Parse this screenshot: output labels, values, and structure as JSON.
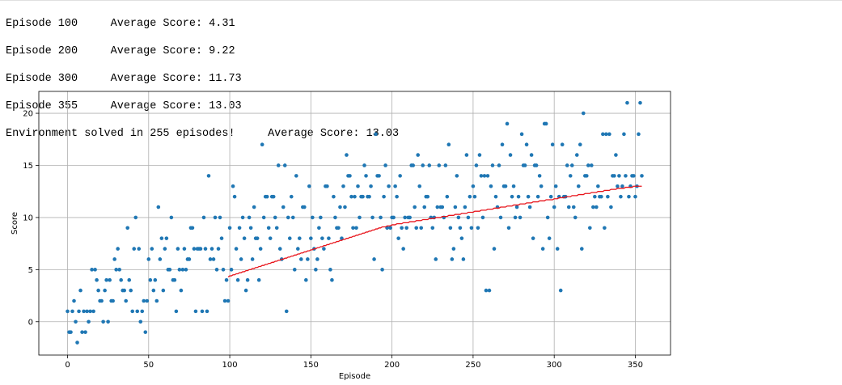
{
  "output": {
    "lines": [
      "Episode 100\tAverage Score: 4.31",
      "Episode 200\tAverage Score: 9.22",
      "Episode 300\tAverage Score: 11.73",
      "Episode 355\tAverage Score: 13.03",
      "Environment solved in 255 episodes!\tAverage Score: 13.03"
    ]
  },
  "chart_data": {
    "type": "scatter",
    "xlabel": "Episode",
    "ylabel": "Score",
    "xlim": [
      -17.7,
      371.7
    ],
    "ylim": [
      -3.2,
      22.1
    ],
    "xticks": [
      0,
      50,
      100,
      150,
      200,
      250,
      300,
      350
    ],
    "yticks": [
      0,
      5,
      10,
      15,
      20
    ],
    "grid": true,
    "series": [
      {
        "name": "Score",
        "kind": "scatter",
        "color": "#1f77b4",
        "x": [
          0,
          1,
          2,
          3,
          4,
          5,
          6,
          7,
          8,
          9,
          10,
          11,
          12,
          13,
          14,
          15,
          16,
          17,
          18,
          19,
          20,
          21,
          22,
          23,
          24,
          25,
          26,
          27,
          28,
          29,
          30,
          31,
          32,
          33,
          34,
          35,
          36,
          37,
          38,
          39,
          40,
          41,
          42,
          43,
          44,
          45,
          46,
          47,
          48,
          49,
          50,
          51,
          52,
          53,
          54,
          55,
          56,
          57,
          58,
          59,
          60,
          61,
          62,
          63,
          64,
          65,
          66,
          67,
          68,
          69,
          70,
          71,
          72,
          73,
          74,
          75,
          76,
          77,
          78,
          79,
          80,
          81,
          82,
          83,
          84,
          85,
          86,
          87,
          88,
          89,
          90,
          91,
          92,
          93,
          94,
          95,
          96,
          97,
          98,
          99,
          100,
          101,
          102,
          103,
          104,
          105,
          106,
          107,
          108,
          109,
          110,
          111,
          112,
          113,
          114,
          115,
          116,
          117,
          118,
          119,
          120,
          121,
          122,
          123,
          124,
          125,
          126,
          127,
          128,
          129,
          130,
          131,
          132,
          133,
          134,
          135,
          136,
          137,
          138,
          139,
          140,
          141,
          142,
          143,
          144,
          145,
          146,
          147,
          148,
          149,
          150,
          151,
          152,
          153,
          154,
          155,
          156,
          157,
          158,
          159,
          160,
          161,
          162,
          163,
          164,
          165,
          166,
          167,
          168,
          169,
          170,
          171,
          172,
          173,
          174,
          175,
          176,
          177,
          178,
          179,
          180,
          181,
          182,
          183,
          184,
          185,
          186,
          187,
          188,
          189,
          190,
          191,
          192,
          193,
          194,
          195,
          196,
          197,
          198,
          199,
          200,
          201,
          202,
          203,
          204,
          205,
          206,
          207,
          208,
          209,
          210,
          211,
          212,
          213,
          214,
          215,
          216,
          217,
          218,
          219,
          220,
          221,
          222,
          223,
          224,
          225,
          226,
          227,
          228,
          229,
          230,
          231,
          232,
          233,
          234,
          235,
          236,
          237,
          238,
          239,
          240,
          241,
          242,
          243,
          244,
          245,
          246,
          247,
          248,
          249,
          250,
          251,
          252,
          253,
          254,
          255,
          256,
          257,
          258,
          259,
          260,
          261,
          262,
          263,
          264,
          265,
          266,
          267,
          268,
          269,
          270,
          271,
          272,
          273,
          274,
          275,
          276,
          277,
          278,
          279,
          280,
          281,
          282,
          283,
          284,
          285,
          286,
          287,
          288,
          289,
          290,
          291,
          292,
          293,
          294,
          295,
          296,
          297,
          298,
          299,
          300,
          301,
          302,
          303,
          304,
          305,
          306,
          307,
          308,
          309,
          310,
          311,
          312,
          313,
          314,
          315,
          316,
          317,
          318,
          319,
          320,
          321,
          322,
          323,
          324,
          325,
          326,
          327,
          328,
          329,
          330,
          331,
          332,
          333,
          334,
          335,
          336,
          337,
          338,
          339,
          340,
          341,
          342,
          343,
          344,
          345,
          346,
          347,
          348,
          349,
          350,
          351,
          352,
          353,
          354
        ],
        "values": [
          1,
          -1,
          -1,
          1,
          2,
          0,
          -2,
          1,
          3,
          -1,
          1,
          -1,
          1,
          0,
          1,
          5,
          1,
          5,
          4,
          3,
          2,
          2,
          0,
          3,
          4,
          0,
          4,
          2,
          2,
          6,
          5,
          7,
          5,
          4,
          3,
          3,
          2,
          9,
          4,
          3,
          1,
          7,
          10,
          1,
          7,
          0,
          1,
          2,
          -1,
          2,
          6,
          4,
          7,
          3,
          4,
          2,
          11,
          6,
          8,
          3,
          7,
          8,
          5,
          5,
          10,
          4,
          4,
          1,
          7,
          5,
          3,
          5,
          7,
          5,
          6,
          6,
          9,
          9,
          7,
          1,
          7,
          7,
          7,
          1,
          10,
          7,
          1,
          14,
          6,
          7,
          6,
          10,
          5,
          7,
          10,
          8,
          5,
          2,
          4,
          2,
          9,
          5,
          13,
          12,
          7,
          4,
          9,
          6,
          10,
          8,
          3,
          4,
          10,
          9,
          6,
          11,
          8,
          8,
          4,
          7,
          17,
          10,
          12,
          12,
          9,
          8,
          12,
          12,
          10,
          9,
          15,
          7,
          6,
          11,
          15,
          1,
          10,
          8,
          12,
          10,
          5,
          14,
          7,
          8,
          6,
          11,
          11,
          4,
          6,
          13,
          8,
          10,
          7,
          5,
          6,
          9,
          10,
          8,
          7,
          13,
          13,
          8,
          5,
          4,
          12,
          10,
          9,
          9,
          11,
          8,
          13,
          11,
          16,
          14,
          14,
          12,
          9,
          12,
          9,
          13,
          10,
          12,
          12,
          15,
          14,
          12,
          12,
          13,
          10,
          6,
          18,
          14,
          14,
          10,
          5,
          12,
          15,
          9,
          13,
          9,
          10,
          10,
          13,
          12,
          8,
          14,
          9,
          7,
          10,
          9,
          10,
          10,
          15,
          15,
          11,
          9,
          16,
          13,
          9,
          15,
          11,
          12,
          12,
          15,
          10,
          9,
          10,
          6,
          11,
          15,
          11,
          11,
          10,
          15,
          12,
          17,
          9,
          6,
          7,
          11,
          14,
          10,
          9,
          8,
          6,
          11,
          16,
          10,
          12,
          9,
          13,
          12,
          15,
          9,
          16,
          14,
          10,
          14,
          3,
          14,
          3,
          13,
          15,
          7,
          12,
          11,
          15,
          10,
          17,
          13,
          13,
          19,
          9,
          16,
          12,
          13,
          10,
          11,
          12,
          10,
          18,
          15,
          15,
          17,
          12,
          11,
          16,
          8,
          15,
          15,
          12,
          14,
          13,
          7,
          19,
          19,
          10,
          8,
          12,
          17,
          11,
          13,
          7,
          12,
          3,
          17,
          12,
          12,
          15,
          11,
          14,
          15,
          11,
          10,
          16,
          13,
          17,
          7,
          20,
          14,
          14,
          15,
          9,
          15,
          11,
          12,
          11,
          13,
          12,
          12,
          18,
          9,
          18,
          12,
          18,
          11,
          14,
          14,
          16,
          13,
          14,
          12,
          13,
          18,
          14,
          21,
          12,
          13,
          14,
          14,
          12,
          13,
          18,
          21,
          14
        ]
      },
      {
        "name": "Average Score",
        "kind": "line",
        "color": "#e8141b",
        "x": [
          99,
          100,
          101,
          102,
          103,
          104,
          105,
          106,
          107,
          108,
          109,
          110,
          111,
          112,
          113,
          114,
          115,
          116,
          117,
          118,
          119,
          120,
          121,
          122,
          123,
          124,
          125,
          126,
          127,
          128,
          129,
          130,
          131,
          132,
          133,
          134,
          135,
          136,
          137,
          138,
          139,
          140,
          141,
          142,
          143,
          144,
          145,
          146,
          147,
          148,
          149,
          150,
          151,
          152,
          153,
          154,
          155,
          156,
          157,
          158,
          159,
          160,
          161,
          162,
          163,
          164,
          165,
          166,
          167,
          168,
          169,
          170,
          171,
          172,
          173,
          174,
          175,
          176,
          177,
          178,
          179,
          180,
          181,
          182,
          183,
          184,
          185,
          186,
          187,
          188,
          189,
          190,
          191,
          192,
          193,
          194,
          195,
          196,
          197,
          198,
          199,
          200,
          201,
          202,
          203,
          204,
          205,
          206,
          207,
          208,
          209,
          210,
          211,
          212,
          213,
          214,
          215,
          216,
          217,
          218,
          219,
          220,
          221,
          222,
          223,
          224,
          225,
          226,
          227,
          228,
          229,
          230,
          231,
          232,
          233,
          234,
          235,
          236,
          237,
          238,
          239,
          240,
          241,
          242,
          243,
          244,
          245,
          246,
          247,
          248,
          249,
          250,
          251,
          252,
          253,
          254,
          255,
          256,
          257,
          258,
          259,
          260,
          261,
          262,
          263,
          264,
          265,
          266,
          267,
          268,
          269,
          270,
          271,
          272,
          273,
          274,
          275,
          276,
          277,
          278,
          279,
          280,
          281,
          282,
          283,
          284,
          285,
          286,
          287,
          288,
          289,
          290,
          291,
          292,
          293,
          294,
          295,
          296,
          297,
          298,
          299,
          300,
          301,
          302,
          303,
          304,
          305,
          306,
          307,
          308,
          309,
          310,
          311,
          312,
          313,
          314,
          315,
          316,
          317,
          318,
          319,
          320,
          321,
          322,
          323,
          324,
          325,
          326,
          327,
          328,
          329,
          330,
          331,
          332,
          333,
          334,
          335,
          336,
          337,
          338,
          339,
          340,
          341,
          342,
          343,
          344,
          345,
          346,
          347,
          348,
          349,
          350,
          351,
          352,
          353,
          354
        ],
        "values": [
          4.3,
          4.4,
          4.4,
          4.5,
          4.5,
          4.6,
          4.6,
          4.7,
          4.7,
          4.8,
          4.8,
          4.9,
          4.9,
          5.0,
          5.0,
          5.1,
          5.1,
          5.2,
          5.2,
          5.3,
          5.3,
          5.4,
          5.4,
          5.5,
          5.5,
          5.6,
          5.6,
          5.7,
          5.7,
          5.8,
          5.8,
          5.9,
          5.9,
          6.0,
          6.0,
          6.1,
          6.1,
          6.2,
          6.2,
          6.3,
          6.3,
          6.4,
          6.4,
          6.5,
          6.5,
          6.6,
          6.6,
          6.7,
          6.7,
          6.8,
          6.8,
          6.9,
          6.9,
          7.0,
          7.0,
          7.1,
          7.1,
          7.2,
          7.2,
          7.3,
          7.3,
          7.4,
          7.4,
          7.5,
          7.5,
          7.6,
          7.6,
          7.7,
          7.7,
          7.8,
          7.8,
          7.9,
          7.9,
          8.0,
          8.0,
          8.1,
          8.1,
          8.2,
          8.2,
          8.3,
          8.3,
          8.4,
          8.4,
          8.5,
          8.5,
          8.6,
          8.6,
          8.7,
          8.7,
          8.8,
          8.8,
          8.9,
          8.9,
          9.0,
          9.0,
          9.1,
          9.1,
          9.1,
          9.2,
          9.2,
          9.2,
          9.3,
          9.3,
          9.3,
          9.4,
          9.4,
          9.4,
          9.4,
          9.5,
          9.5,
          9.5,
          9.5,
          9.6,
          9.6,
          9.6,
          9.6,
          9.7,
          9.7,
          9.7,
          9.7,
          9.8,
          9.8,
          9.8,
          9.8,
          9.9,
          9.9,
          9.9,
          9.9,
          10.0,
          10.0,
          10.0,
          10.0,
          10.1,
          10.1,
          10.1,
          10.1,
          10.2,
          10.2,
          10.2,
          10.2,
          10.3,
          10.3,
          10.3,
          10.3,
          10.4,
          10.4,
          10.4,
          10.4,
          10.5,
          10.5,
          10.5,
          10.5,
          10.6,
          10.6,
          10.6,
          10.6,
          10.7,
          10.7,
          10.7,
          10.7,
          10.8,
          10.8,
          10.8,
          10.8,
          10.9,
          10.9,
          10.9,
          10.9,
          11.0,
          11.0,
          11.0,
          11.0,
          11.1,
          11.1,
          11.1,
          11.1,
          11.2,
          11.2,
          11.2,
          11.2,
          11.3,
          11.3,
          11.3,
          11.3,
          11.4,
          11.4,
          11.4,
          11.4,
          11.5,
          11.5,
          11.5,
          11.5,
          11.6,
          11.6,
          11.6,
          11.6,
          11.7,
          11.7,
          11.7,
          11.7,
          11.7,
          11.8,
          11.8,
          11.8,
          11.9,
          11.9,
          11.9,
          11.9,
          12.0,
          12.0,
          12.0,
          12.0,
          12.1,
          12.1,
          12.1,
          12.1,
          12.2,
          12.2,
          12.2,
          12.2,
          12.3,
          12.3,
          12.3,
          12.3,
          12.4,
          12.4,
          12.4,
          12.4,
          12.5,
          12.5,
          12.5,
          12.5,
          12.6,
          12.6,
          12.6,
          12.6,
          12.7,
          12.7,
          12.7,
          12.7,
          12.8,
          12.8,
          12.8,
          12.8,
          12.8,
          12.9,
          12.9,
          12.9,
          12.9,
          12.9,
          13.0,
          13.0,
          13.0,
          13.0,
          13.0,
          13.0
        ]
      }
    ]
  }
}
